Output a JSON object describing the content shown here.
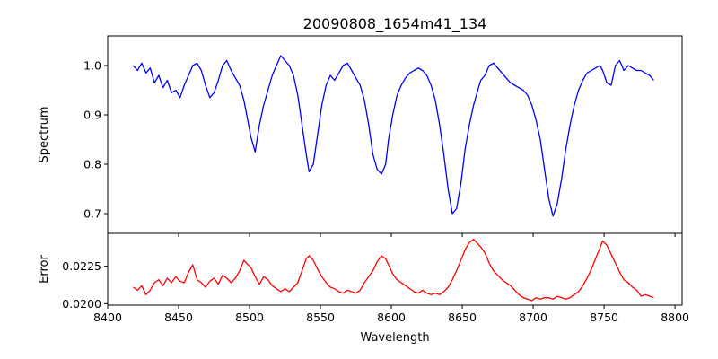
{
  "chart_data": [
    {
      "type": "line",
      "title": "20090808_1654m41_134",
      "xlabel": "",
      "ylabel": "Spectrum",
      "xlim": [
        8400,
        8805
      ],
      "ylim": [
        0.66,
        1.06
      ],
      "xticks": [
        8400,
        8450,
        8500,
        8550,
        8600,
        8650,
        8700,
        8750,
        8800
      ],
      "yticks": [
        0.7,
        0.8,
        0.9,
        1.0
      ],
      "ytick_labels": [
        "0.7",
        "0.8",
        "0.9",
        "1.0"
      ],
      "show_xtick_labels": false,
      "grid": false,
      "color": "#0000ff",
      "x": [
        8418,
        8421,
        8424,
        8427,
        8430,
        8433,
        8436,
        8439,
        8442,
        8445,
        8448,
        8451,
        8454,
        8457,
        8460,
        8463,
        8466,
        8469,
        8472,
        8475,
        8478,
        8481,
        8484,
        8487,
        8490,
        8493,
        8496,
        8498,
        8501,
        8504,
        8507,
        8510,
        8513,
        8516,
        8519,
        8522,
        8525,
        8528,
        8531,
        8534,
        8537,
        8540,
        8542,
        8545,
        8548,
        8551,
        8554,
        8557,
        8560,
        8563,
        8566,
        8569,
        8572,
        8575,
        8578,
        8581,
        8584,
        8587,
        8590,
        8593,
        8596,
        8598,
        8601,
        8604,
        8607,
        8610,
        8613,
        8616,
        8619,
        8622,
        8625,
        8628,
        8631,
        8634,
        8637,
        8640,
        8643,
        8646,
        8649,
        8652,
        8655,
        8658,
        8661,
        8663,
        8666,
        8669,
        8672,
        8675,
        8678,
        8681,
        8684,
        8687,
        8690,
        8693,
        8696,
        8699,
        8702,
        8705,
        8708,
        8711,
        8714,
        8717,
        8720,
        8723,
        8726,
        8729,
        8732,
        8735,
        8738,
        8741,
        8744,
        8747,
        8749,
        8752,
        8755,
        8758,
        8761,
        8764,
        8767,
        8770,
        8773,
        8776,
        8779,
        8782,
        8785
      ],
      "y": [
        1.0,
        0.99,
        1.005,
        0.985,
        0.995,
        0.965,
        0.98,
        0.955,
        0.97,
        0.945,
        0.95,
        0.935,
        0.96,
        0.98,
        1.0,
        1.005,
        0.99,
        0.96,
        0.935,
        0.945,
        0.97,
        1.0,
        1.01,
        0.99,
        0.975,
        0.96,
        0.93,
        0.9,
        0.855,
        0.825,
        0.88,
        0.92,
        0.95,
        0.98,
        1.0,
        1.02,
        1.01,
        1.0,
        0.98,
        0.94,
        0.88,
        0.82,
        0.785,
        0.8,
        0.86,
        0.92,
        0.96,
        0.98,
        0.97,
        0.985,
        1.0,
        1.005,
        0.99,
        0.975,
        0.96,
        0.93,
        0.88,
        0.82,
        0.79,
        0.78,
        0.8,
        0.85,
        0.9,
        0.94,
        0.96,
        0.975,
        0.985,
        0.99,
        0.995,
        0.99,
        0.98,
        0.96,
        0.93,
        0.88,
        0.82,
        0.75,
        0.7,
        0.71,
        0.76,
        0.83,
        0.88,
        0.92,
        0.95,
        0.97,
        0.98,
        1.0,
        1.005,
        0.995,
        0.985,
        0.975,
        0.965,
        0.96,
        0.955,
        0.95,
        0.94,
        0.92,
        0.89,
        0.85,
        0.79,
        0.73,
        0.695,
        0.72,
        0.77,
        0.83,
        0.88,
        0.92,
        0.95,
        0.97,
        0.985,
        0.99,
        0.995,
        1.0,
        0.99,
        0.965,
        0.96,
        1.0,
        1.01,
        0.99,
        1.0,
        0.995,
        0.99,
        0.99,
        0.985,
        0.98,
        0.97
      ]
    },
    {
      "type": "line",
      "title": "",
      "xlabel": "Wavelength",
      "ylabel": "Error",
      "xlim": [
        8400,
        8805
      ],
      "ylim": [
        0.0199,
        0.0247
      ],
      "xticks": [
        8400,
        8450,
        8500,
        8550,
        8600,
        8650,
        8700,
        8750,
        8800
      ],
      "xtick_labels": [
        "8400",
        "8450",
        "8500",
        "8550",
        "8600",
        "8650",
        "8700",
        "8750",
        "8800"
      ],
      "yticks": [
        0.02,
        0.0225
      ],
      "ytick_labels": [
        "0.0200",
        "0.0225"
      ],
      "grid": false,
      "color": "#ff0000",
      "x": [
        8418,
        8421,
        8424,
        8427,
        8430,
        8433,
        8436,
        8439,
        8442,
        8445,
        8448,
        8451,
        8454,
        8457,
        8460,
        8463,
        8466,
        8469,
        8472,
        8475,
        8478,
        8481,
        8484,
        8487,
        8490,
        8493,
        8496,
        8498,
        8501,
        8504,
        8507,
        8510,
        8513,
        8516,
        8519,
        8522,
        8525,
        8528,
        8531,
        8534,
        8537,
        8540,
        8542,
        8545,
        8548,
        8551,
        8554,
        8557,
        8560,
        8563,
        8566,
        8569,
        8572,
        8575,
        8578,
        8581,
        8584,
        8587,
        8590,
        8593,
        8596,
        8598,
        8601,
        8604,
        8607,
        8610,
        8613,
        8616,
        8619,
        8622,
        8625,
        8628,
        8631,
        8634,
        8637,
        8640,
        8643,
        8646,
        8649,
        8652,
        8655,
        8658,
        8661,
        8663,
        8666,
        8669,
        8672,
        8675,
        8678,
        8681,
        8684,
        8687,
        8690,
        8693,
        8696,
        8699,
        8702,
        8705,
        8708,
        8711,
        8714,
        8717,
        8720,
        8723,
        8726,
        8729,
        8732,
        8735,
        8738,
        8741,
        8744,
        8747,
        8749,
        8752,
        8755,
        8758,
        8761,
        8764,
        8767,
        8770,
        8773,
        8776,
        8779,
        8782,
        8785
      ],
      "y": [
        0.0211,
        0.0209,
        0.0212,
        0.0206,
        0.0209,
        0.0214,
        0.0216,
        0.0212,
        0.0217,
        0.0214,
        0.0218,
        0.0215,
        0.0214,
        0.0221,
        0.0226,
        0.0216,
        0.0214,
        0.0211,
        0.0215,
        0.0217,
        0.0213,
        0.0219,
        0.0217,
        0.0214,
        0.0217,
        0.0222,
        0.0229,
        0.0227,
        0.0224,
        0.0218,
        0.0213,
        0.0218,
        0.0216,
        0.0212,
        0.021,
        0.0208,
        0.021,
        0.0208,
        0.0211,
        0.0214,
        0.0222,
        0.023,
        0.0232,
        0.0229,
        0.0223,
        0.0218,
        0.0214,
        0.0211,
        0.021,
        0.0208,
        0.0207,
        0.0209,
        0.0208,
        0.0207,
        0.0209,
        0.0214,
        0.0218,
        0.0222,
        0.0228,
        0.0232,
        0.023,
        0.0226,
        0.022,
        0.0216,
        0.0214,
        0.0212,
        0.021,
        0.0208,
        0.0207,
        0.0209,
        0.0207,
        0.0206,
        0.0207,
        0.0206,
        0.0208,
        0.0211,
        0.0216,
        0.0222,
        0.0229,
        0.0236,
        0.0241,
        0.0243,
        0.024,
        0.0238,
        0.0234,
        0.0227,
        0.0222,
        0.0219,
        0.0216,
        0.0214,
        0.0212,
        0.0209,
        0.0206,
        0.0204,
        0.0203,
        0.0202,
        0.0204,
        0.0203,
        0.0204,
        0.0204,
        0.0203,
        0.0205,
        0.0204,
        0.0203,
        0.0204,
        0.0206,
        0.0208,
        0.0212,
        0.0217,
        0.0223,
        0.023,
        0.0237,
        0.0242,
        0.0239,
        0.0233,
        0.0227,
        0.0221,
        0.0216,
        0.0214,
        0.0211,
        0.0209,
        0.0205,
        0.0206,
        0.0205,
        0.0204
      ]
    }
  ]
}
